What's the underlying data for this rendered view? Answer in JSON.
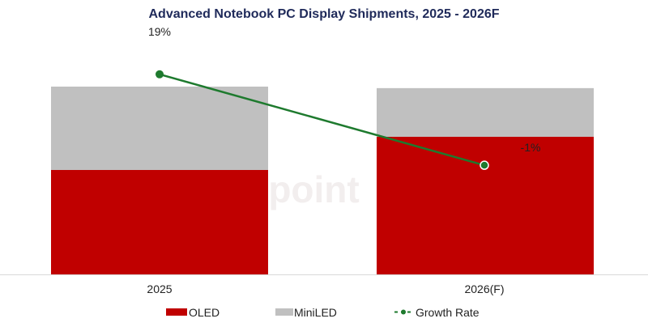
{
  "chart_data": {
    "type": "bar",
    "stacked": true,
    "title": "Advanced Notebook PC Display Shipments, 2025 - 2026F",
    "categories": [
      "2025",
      "2026(F)"
    ],
    "series": [
      {
        "name": "OLED",
        "values": [
          55.6,
          73.3
        ],
        "color": "#c00000"
      },
      {
        "name": "MiniLED",
        "values": [
          44.4,
          25.9
        ],
        "color": "#c0c0c0"
      }
    ],
    "line_series": {
      "name": "Growth Rate",
      "values": [
        19,
        -1
      ],
      "labels": [
        "19%",
        "-1%"
      ],
      "color": "#1e7a2e",
      "axis": "secondary"
    },
    "ylim": [
      0,
      100
    ],
    "secondary_ylim": [
      -25,
      30
    ],
    "grid": false,
    "legend": "bottom",
    "watermark": "Counterpoint"
  }
}
